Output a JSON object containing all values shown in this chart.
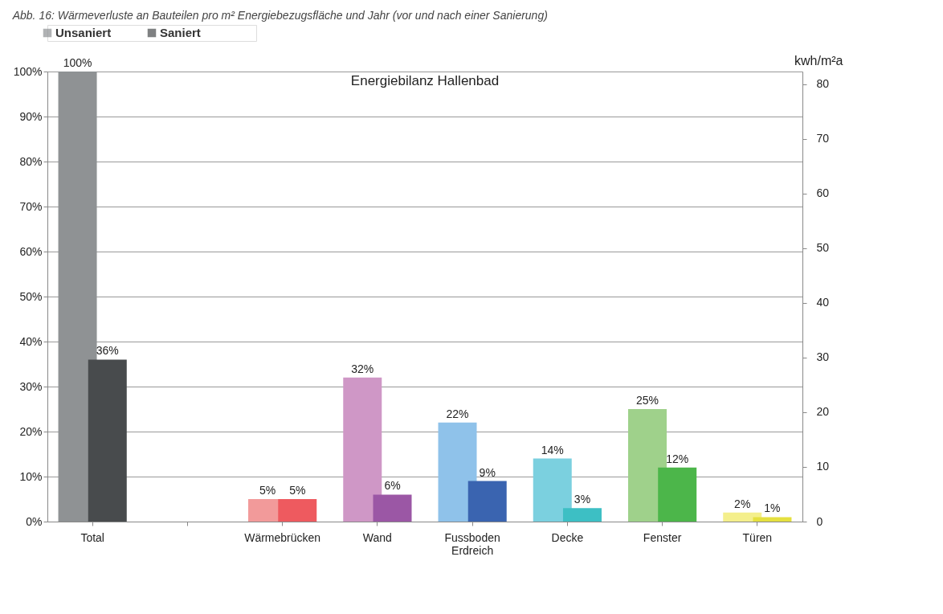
{
  "chart_data": {
    "type": "bar",
    "title": "Energiebilanz Hallenbad",
    "annotations": [
      "Abb. 16: Wärmeverluste an Bauteilen pro m² Energiebezugsfläche und Jahr (vor und nach einer Sanierung)"
    ],
    "y2label": "kwh/m²a",
    "categories": [
      "Total",
      null,
      "Wärmebrücken",
      "Wand",
      "Fussboden Erdreich",
      "Decke",
      "Fenster",
      "Türen"
    ],
    "series": [
      {
        "name": "Unsaniert",
        "color": "#8f9294",
        "colors": [
          "#8f9294",
          "#8f9294",
          "#f29a9a",
          "#cf97c6",
          "#8fc2ea",
          "#7bd0df",
          "#9fd18b",
          "#f4ef8c"
        ],
        "values": [
          100,
          null,
          5,
          32,
          22,
          14,
          25,
          2
        ],
        "value_labels": [
          "100%",
          null,
          "5%",
          "32%",
          "22%",
          "14%",
          "25%",
          "2%"
        ]
      },
      {
        "name": "Saniert",
        "color": "#484b4d",
        "colors": [
          "#484b4d",
          "#484b4d",
          "#ee5a5f",
          "#9b57a5",
          "#3a64b0",
          "#3dbfc4",
          "#4cb64a",
          "#e5e040"
        ],
        "values": [
          36,
          null,
          5,
          6,
          9,
          3,
          12,
          1
        ],
        "value_labels": [
          "36%",
          null,
          "5%",
          "6%",
          "9%",
          "3%",
          "12%",
          "1%"
        ]
      }
    ],
    "ylim": [
      0,
      100
    ],
    "yticks": [
      {
        "value": 0,
        "label": "0%"
      },
      {
        "value": 10,
        "label": "10%"
      },
      {
        "value": 20,
        "label": "20%"
      },
      {
        "value": 30,
        "label": "30%"
      },
      {
        "value": 40,
        "label": "40%"
      },
      {
        "value": 50,
        "label": "50%"
      },
      {
        "value": 60,
        "label": "60%"
      },
      {
        "value": 70,
        "label": "70%"
      },
      {
        "value": 80,
        "label": "80%"
      },
      {
        "value": 90,
        "label": "90%"
      },
      {
        "value": 100,
        "label": "100%"
      }
    ],
    "y2lim": [
      0,
      82.3
    ],
    "y2ticks": [
      0,
      10,
      20,
      30,
      40,
      50,
      60,
      70,
      80
    ],
    "grid": "y",
    "legend": "top left"
  }
}
